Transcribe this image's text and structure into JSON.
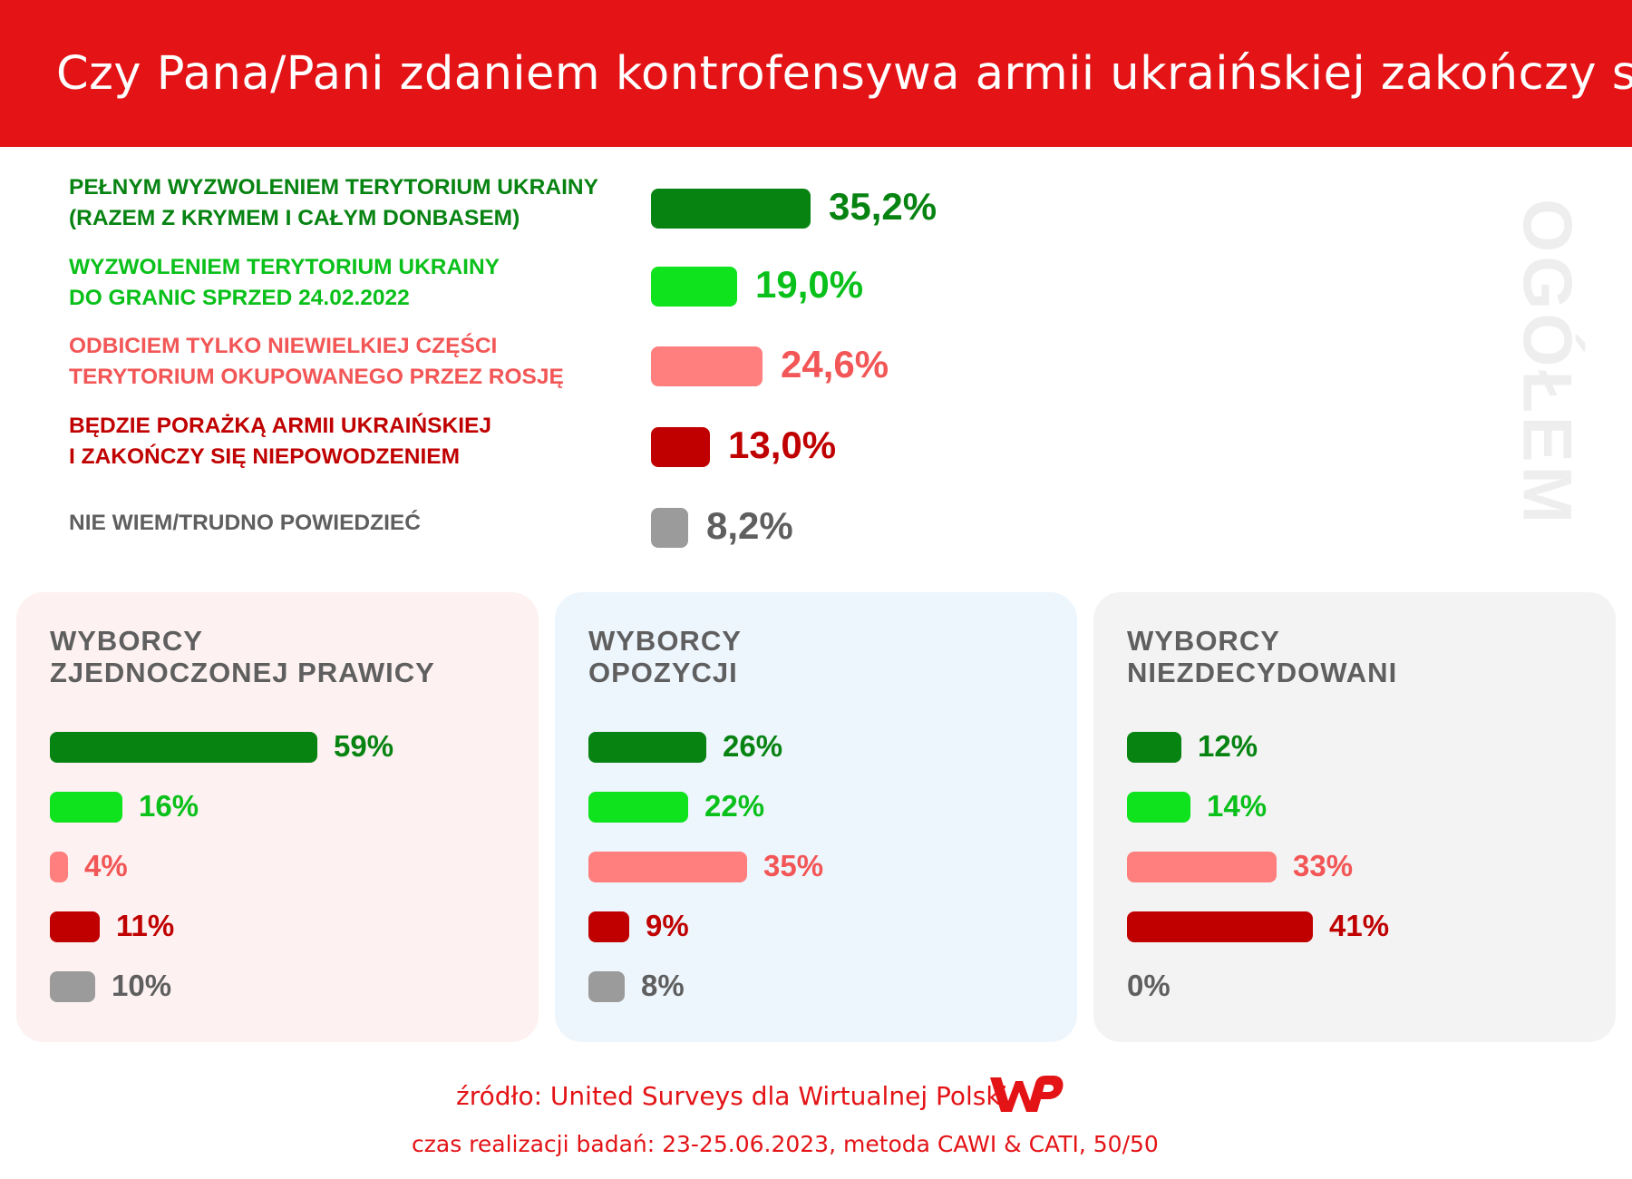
{
  "header": {
    "title": "Czy Pana/Pani zdaniem kontrofensywa armii ukraińskiej zakończy się:"
  },
  "side_label": "OGÓŁEM",
  "colors": {
    "header_bg": "#e31316",
    "full_liberation": "#078312",
    "liberation_1991": "#0ee31d",
    "small_part": "#ff7f7f",
    "defeat": "#c00000",
    "dont_know": "#9b9b9b",
    "panel_right": "#fdf1f1",
    "panel_opposition": "#edf5fd",
    "panel_undecided": "#f3f3f3"
  },
  "chart_data": [
    {
      "type": "bar",
      "title": "Ogółem",
      "categories": [
        "PEŁNYM WYZWOLENIEM TERYTORIUM UKRAINY (RAZEM Z KRYMEM I CAŁYM DONBASEM)",
        "WYZWOLENIEM TERYTORIUM UKRAINY DO GRANIC SPRZED 24.02.2022",
        "ODBICIEM TYLKO NIEWIELKIEJ CZĘŚCI TERYTORIUM OKUPOWANEGO PRZEZ ROSJĘ",
        "BĘDZIE PORAŻKĄ ARMII UKRAIŃSKIEJ I ZAKOŃCZY SIĘ NIEPOWODZENIEM",
        "NIE WIEM/TRUDNO POWIEDZIEĆ"
      ],
      "label_lines": [
        [
          "PEŁNYM WYZWOLENIEM TERYTORIUM UKRAINY",
          "(RAZEM Z KRYMEM I CAŁYM DONBASEM)"
        ],
        [
          "WYZWOLENIEM TERYTORIUM UKRAINY",
          "DO GRANIC SPRZED 24.02.2022"
        ],
        [
          "ODBICIEM TYLKO NIEWIELKIEJ CZĘŚCI",
          "TERYTORIUM OKUPOWANEGO PRZEZ ROSJĘ"
        ],
        [
          "BĘDZIE PORAŻKĄ ARMII UKRAIŃSKIEJ",
          "I ZAKOŃCZY SIĘ NIEPOWODZENIEM"
        ],
        [
          "NIE WIEM/TRUDNO POWIEDZIEĆ"
        ]
      ],
      "values": [
        35.2,
        19.0,
        24.6,
        13.0,
        8.2
      ],
      "value_labels": [
        "35,2%",
        "19,0%",
        "24,6%",
        "13,0%",
        "8,2%"
      ],
      "label_colors": [
        "#078312",
        "#0ac01a",
        "#f25656",
        "#c00000",
        "#5f5f5f"
      ],
      "value_colors": [
        "#078312",
        "#0ac01a",
        "#f25656",
        "#c00000",
        "#5f5f5f"
      ],
      "bar_colors": [
        "#078312",
        "#0ee31d",
        "#ff7f7f",
        "#c00000",
        "#9b9b9b"
      ]
    },
    {
      "type": "bar",
      "title_lines": [
        "WYBORCY",
        "ZJEDNOCZONEJ PRAWICY"
      ],
      "values": [
        59,
        16,
        4,
        11,
        10
      ],
      "value_labels": [
        "59%",
        "16%",
        "4%",
        "11%",
        "10%"
      ]
    },
    {
      "type": "bar",
      "title_lines": [
        "WYBORCY",
        "OPOZYCJI"
      ],
      "values": [
        26,
        22,
        35,
        9,
        8
      ],
      "value_labels": [
        "26%",
        "22%",
        "35%",
        "9%",
        "8%"
      ]
    },
    {
      "type": "bar",
      "title_lines": [
        "WYBORCY",
        "NIEZDECYDOWANI"
      ],
      "values": [
        12,
        14,
        33,
        41,
        0
      ],
      "value_labels": [
        "12%",
        "14%",
        "33%",
        "41%",
        "0%"
      ]
    }
  ],
  "footer": {
    "source": "źródło: United Surveys dla Wirtualnej Polski",
    "details": "czas realizacji badań: 23-25.06.2023, metoda CAWI & CATI, 50/50",
    "logo_text": "WP"
  }
}
